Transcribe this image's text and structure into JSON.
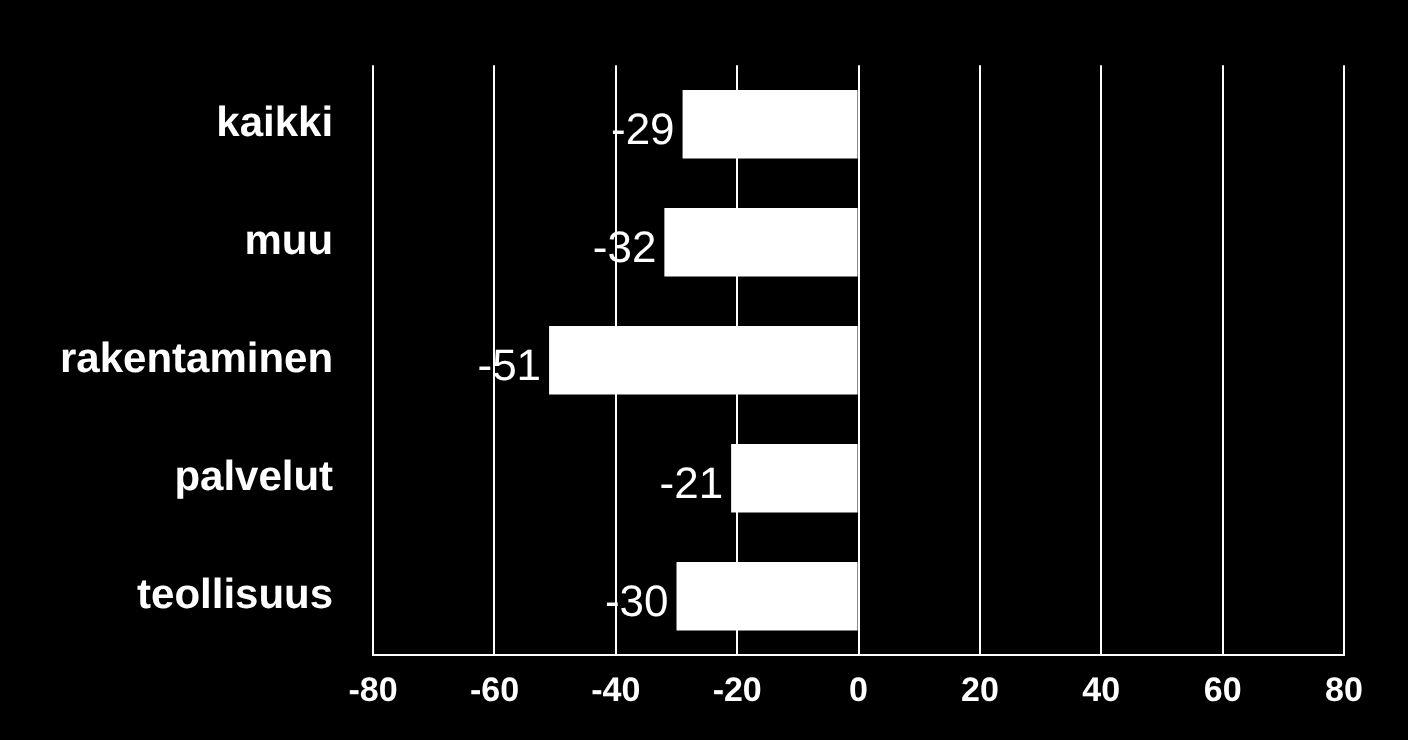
{
  "chart_data": {
    "type": "bar",
    "orientation": "horizontal",
    "categories": [
      "kaikki",
      "muu",
      "rakentaminen",
      "palvelut",
      "teollisuus"
    ],
    "values": [
      -29,
      -32,
      -51,
      -21,
      -30
    ],
    "color": "#ffffff",
    "xlim": [
      -80,
      80
    ],
    "xticks": [
      -80,
      -60,
      -40,
      -20,
      0,
      20,
      40,
      60,
      80
    ],
    "grid": "x",
    "data_labels": true,
    "legend": false
  }
}
